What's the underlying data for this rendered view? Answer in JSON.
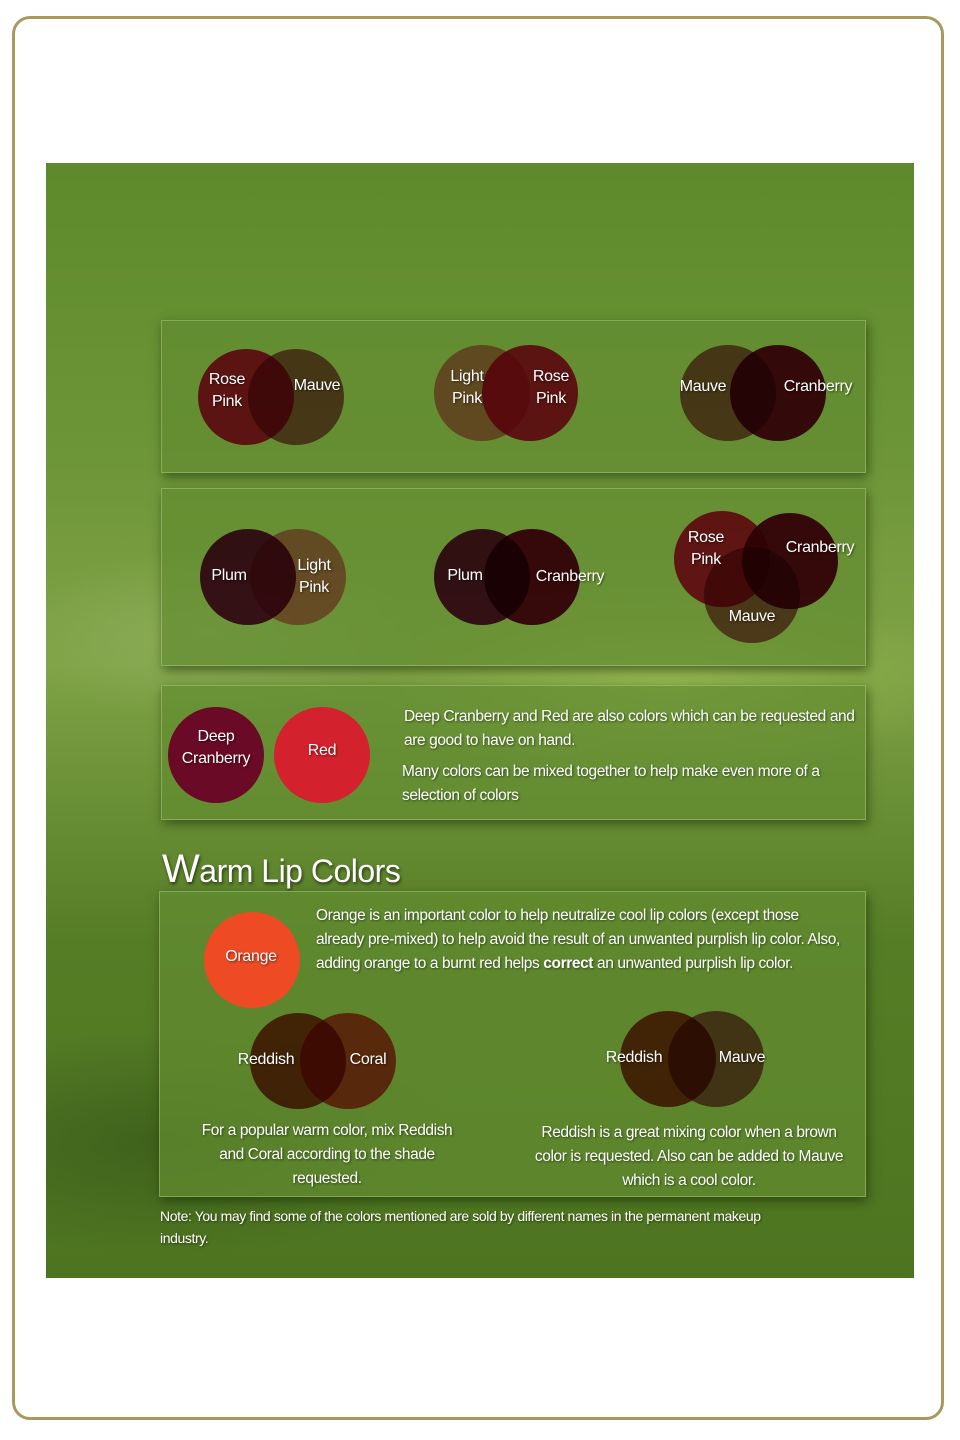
{
  "colors": {
    "rose_pink": "#e8245a",
    "mauve": "#b06272",
    "light_pink": "#f283a8",
    "cranberry": "#820f2e",
    "plum": "#781c58",
    "deep_cranberry": "#6b0a26",
    "red": "#d4212e",
    "orange": "#ee4a24",
    "reddish": "#b0421e",
    "coral": "#f24c42"
  },
  "row1": {
    "combo1": {
      "a": "Rose Pink",
      "b": "Mauve"
    },
    "combo2": {
      "a": "Light Pink",
      "b": "Rose Pink"
    },
    "combo3": {
      "a": "Mauve",
      "b": "Cranberry"
    }
  },
  "row2": {
    "combo1": {
      "a": "Plum",
      "b": "Light Pink"
    },
    "combo2": {
      "a": "Plum",
      "b": "Cranberry"
    },
    "combo3": {
      "a": "Rose Pink",
      "b": "Cranberry",
      "c": "Mauve"
    }
  },
  "row3": {
    "deep_cranberry": "Deep Cranberry",
    "red": "Red",
    "text1": "Deep Cranberry and Red are also colors which can be requested and are good to have on hand.",
    "text2": "Many colors can be mixed together to help make even more of a selection of colors"
  },
  "warm": {
    "heading_initial": "W",
    "heading_rest": "arm Lip Colors",
    "orange": "Orange",
    "orange_text_1": "Orange is an important color to help neutralize cool lip colors (except those already pre-mixed) to help avoid the result of an unwanted  purplish lip color. Also, adding orange to a burnt red helps ",
    "orange_text_bold": "correct",
    "orange_text_2": " an unwanted purplish lip color.",
    "combo1": {
      "a": "Reddish",
      "b": "Coral",
      "caption": "For a popular warm color, mix Reddish and Coral according to the shade requested."
    },
    "combo2": {
      "a": "Reddish",
      "b": "Mauve",
      "caption": "Reddish is a great mixing color when a brown color is requested. Also can be added to Mauve which is a cool color."
    }
  },
  "note": "Note: You may find some of the colors mentioned are sold by different names in the permanent makeup industry."
}
